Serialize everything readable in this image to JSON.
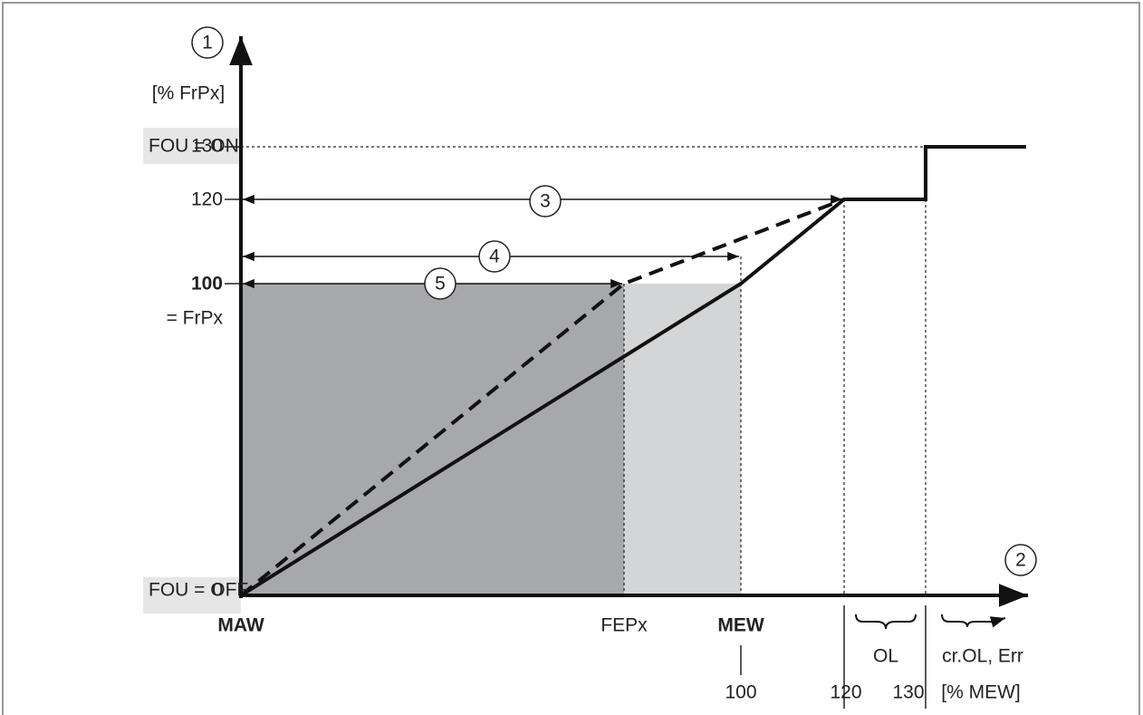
{
  "y_axis": {
    "marker": "1",
    "unit": "[% FrPx]",
    "on_state": "FOU = ON",
    "tick_130": "130",
    "tick_120": "120",
    "tick_100": "100",
    "tick_100_note": "= FrPx",
    "off_state": "FOU = OFF",
    "tick_0": "0"
  },
  "x_axis": {
    "marker": "2",
    "start": "MAW",
    "fepx": "FEPx",
    "mew": "MEW",
    "tick_100": "100",
    "tick_120": "120",
    "tick_130": "130",
    "unit": "[% MEW]",
    "range_ol": "OL",
    "range_err": "cr.OL, Err"
  },
  "callouts": [
    "3",
    "4",
    "5"
  ]
}
